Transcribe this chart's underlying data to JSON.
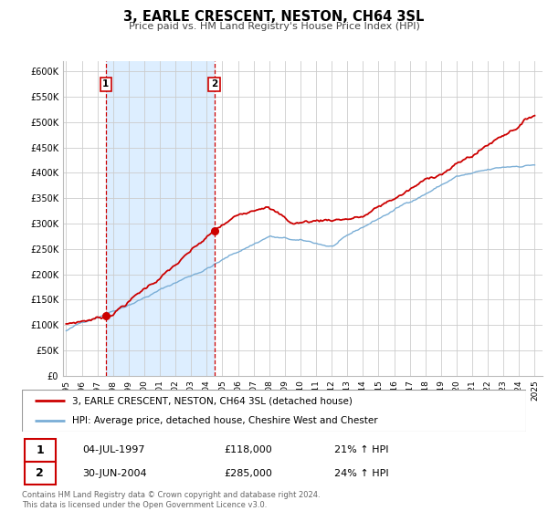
{
  "title": "3, EARLE CRESCENT, NESTON, CH64 3SL",
  "subtitle": "Price paid vs. HM Land Registry's House Price Index (HPI)",
  "hpi_label": "HPI: Average price, detached house, Cheshire West and Chester",
  "property_label": "3, EARLE CRESCENT, NESTON, CH64 3SL (detached house)",
  "sale1_date": "04-JUL-1997",
  "sale1_price": 118000,
  "sale1_hpi": "21% ↑ HPI",
  "sale2_date": "30-JUN-2004",
  "sale2_price": 285000,
  "sale2_hpi": "24% ↑ HPI",
  "footer1": "Contains HM Land Registry data © Crown copyright and database right 2024.",
  "footer2": "This data is licensed under the Open Government Licence v3.0.",
  "property_color": "#cc0000",
  "hpi_color": "#7aaed6",
  "shaded_color": "#ddeeff",
  "vline_color": "#cc0000",
  "sale1_x": 1997.54,
  "sale2_x": 2004.49,
  "sale1_y": 118000,
  "sale2_y": 285000,
  "ylim_min": 0,
  "ylim_max": 620000,
  "xlim_min": 1994.8,
  "xlim_max": 2025.5,
  "yticks": [
    0,
    50000,
    100000,
    150000,
    200000,
    250000,
    300000,
    350000,
    400000,
    450000,
    500000,
    550000,
    600000
  ],
  "ytick_labels": [
    "£0",
    "£50K",
    "£100K",
    "£150K",
    "£200K",
    "£250K",
    "£300K",
    "£350K",
    "£400K",
    "£450K",
    "£500K",
    "£550K",
    "£600K"
  ],
  "xticks": [
    1995,
    1996,
    1997,
    1998,
    1999,
    2000,
    2001,
    2002,
    2003,
    2004,
    2005,
    2006,
    2007,
    2008,
    2009,
    2010,
    2011,
    2012,
    2013,
    2014,
    2015,
    2016,
    2017,
    2018,
    2019,
    2020,
    2021,
    2022,
    2023,
    2024,
    2025
  ]
}
